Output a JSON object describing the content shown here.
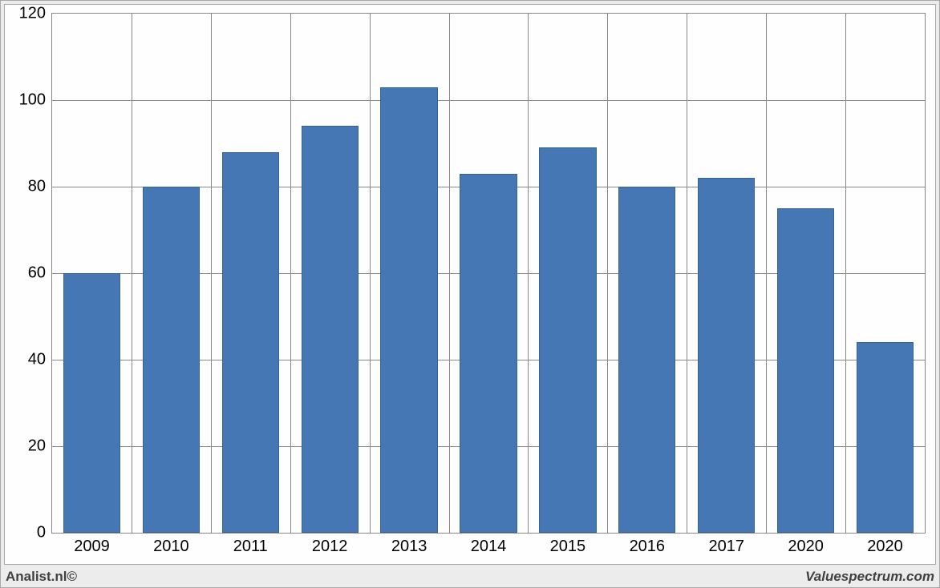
{
  "chart": {
    "type": "bar",
    "categories": [
      "2009",
      "2010",
      "2011",
      "2012",
      "2013",
      "2014",
      "2015",
      "2016",
      "2017",
      "2020",
      "2020"
    ],
    "values": [
      60,
      80,
      88,
      94,
      103,
      83,
      89,
      80,
      82,
      75,
      44
    ],
    "ylim": [
      0,
      120
    ],
    "ytick_step": 20,
    "yticks": [
      0,
      20,
      40,
      60,
      80,
      100,
      120
    ],
    "bar_color": "#4577b4",
    "bar_border_color": "#3a628f",
    "background_color": "#fefefe",
    "grid_color": "#888888",
    "outer_background": "#ececec",
    "outer_border_color": "#a9a9a9",
    "bar_width_ratio": 0.72,
    "axis_fontsize": 20,
    "footer_fontsize": 17,
    "text_color": "#000000",
    "footer_text_color": "#404040"
  },
  "footer": {
    "left": "Analist.nl©",
    "right": "Valuespectrum.com"
  }
}
